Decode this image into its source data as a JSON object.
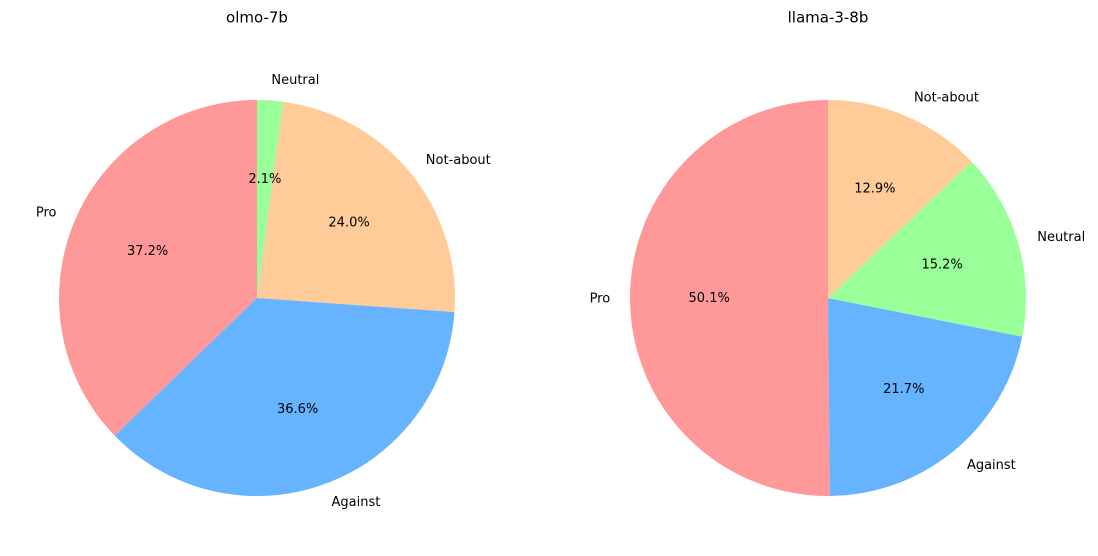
{
  "chart_data": [
    {
      "type": "pie",
      "title": "olmo-7b",
      "categories": [
        "Pro",
        "Against",
        "Not-about",
        "Neutral"
      ],
      "values": [
        37.2,
        36.6,
        24.0,
        2.1
      ],
      "value_labels": [
        "37.2%",
        "36.6%",
        "24.0%",
        "2.1%"
      ],
      "colors": [
        "#ff9999",
        "#66b3ff",
        "#ffcc99",
        "#99ff99"
      ]
    },
    {
      "type": "pie",
      "title": "llama-3-8b",
      "categories": [
        "Pro",
        "Against",
        "Neutral",
        "Not-about"
      ],
      "values": [
        50.1,
        21.7,
        15.2,
        12.9
      ],
      "value_labels": [
        "50.1%",
        "21.7%",
        "15.2%",
        "12.9%"
      ],
      "colors": [
        "#ff9999",
        "#66b3ff",
        "#99ff99",
        "#ffcc99"
      ]
    }
  ]
}
